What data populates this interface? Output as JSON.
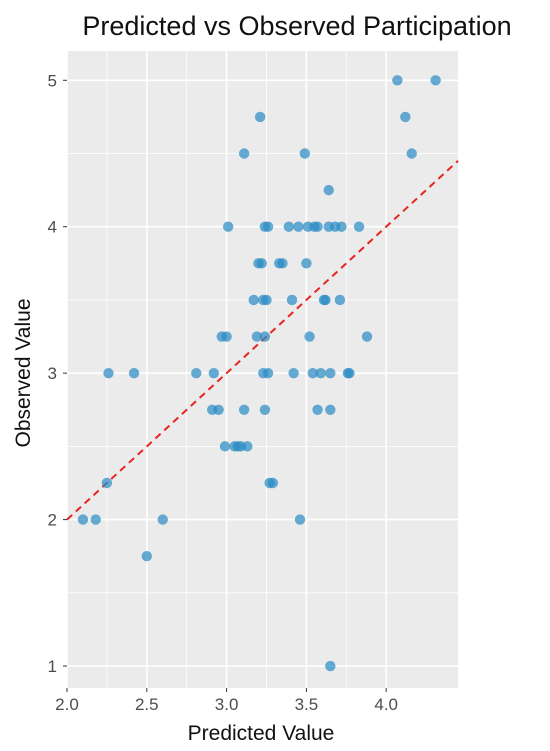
{
  "chart_data": {
    "type": "scatter",
    "title": "Predicted vs Observed Participation",
    "xlabel": "Predicted Value",
    "ylabel": "Observed Value",
    "xlim": [
      2.0,
      4.45
    ],
    "ylim": [
      0.85,
      5.2
    ],
    "xticks": [
      "2.0",
      "2.5",
      "3.0",
      "3.5",
      "4.0"
    ],
    "xtick_values": [
      2.0,
      2.5,
      3.0,
      3.5,
      4.0
    ],
    "yticks": [
      "1",
      "2",
      "3",
      "4",
      "5"
    ],
    "ytick_values": [
      1,
      2,
      3,
      4,
      5
    ],
    "grid": true,
    "background": "#ebebeb",
    "point_color": "#2b8cc4",
    "reference_line": {
      "type": "identity",
      "style": "dashed",
      "color": "#e8241e",
      "slope": 1,
      "intercept": 0
    },
    "points": [
      {
        "x": 2.1,
        "y": 2.0
      },
      {
        "x": 2.18,
        "y": 2.0
      },
      {
        "x": 2.25,
        "y": 2.25
      },
      {
        "x": 2.26,
        "y": 3.0
      },
      {
        "x": 2.42,
        "y": 3.0
      },
      {
        "x": 2.5,
        "y": 1.75
      },
      {
        "x": 2.6,
        "y": 2.0
      },
      {
        "x": 2.81,
        "y": 3.0
      },
      {
        "x": 2.91,
        "y": 2.75
      },
      {
        "x": 2.92,
        "y": 3.0
      },
      {
        "x": 2.95,
        "y": 2.75
      },
      {
        "x": 2.97,
        "y": 3.25
      },
      {
        "x": 2.99,
        "y": 2.5
      },
      {
        "x": 3.0,
        "y": 3.25
      },
      {
        "x": 3.01,
        "y": 4.0
      },
      {
        "x": 3.05,
        "y": 2.5
      },
      {
        "x": 3.07,
        "y": 2.5
      },
      {
        "x": 3.09,
        "y": 2.5
      },
      {
        "x": 3.11,
        "y": 4.5
      },
      {
        "x": 3.11,
        "y": 2.75
      },
      {
        "x": 3.13,
        "y": 2.5
      },
      {
        "x": 3.17,
        "y": 3.5
      },
      {
        "x": 3.19,
        "y": 3.25
      },
      {
        "x": 3.2,
        "y": 3.75
      },
      {
        "x": 3.21,
        "y": 4.75
      },
      {
        "x": 3.22,
        "y": 3.75
      },
      {
        "x": 3.23,
        "y": 3.0
      },
      {
        "x": 3.23,
        "y": 3.5
      },
      {
        "x": 3.24,
        "y": 3.25
      },
      {
        "x": 3.24,
        "y": 4.0
      },
      {
        "x": 3.24,
        "y": 2.75
      },
      {
        "x": 3.25,
        "y": 3.5
      },
      {
        "x": 3.26,
        "y": 4.0
      },
      {
        "x": 3.26,
        "y": 3.0
      },
      {
        "x": 3.27,
        "y": 2.25
      },
      {
        "x": 3.29,
        "y": 2.25
      },
      {
        "x": 3.33,
        "y": 3.75
      },
      {
        "x": 3.35,
        "y": 3.75
      },
      {
        "x": 3.39,
        "y": 4.0
      },
      {
        "x": 3.41,
        "y": 3.5
      },
      {
        "x": 3.42,
        "y": 3.0
      },
      {
        "x": 3.45,
        "y": 4.0
      },
      {
        "x": 3.46,
        "y": 2.0
      },
      {
        "x": 3.49,
        "y": 4.5
      },
      {
        "x": 3.5,
        "y": 3.75
      },
      {
        "x": 3.51,
        "y": 4.0
      },
      {
        "x": 3.52,
        "y": 3.25
      },
      {
        "x": 3.54,
        "y": 3.0
      },
      {
        "x": 3.55,
        "y": 4.0
      },
      {
        "x": 3.57,
        "y": 4.0
      },
      {
        "x": 3.57,
        "y": 2.75
      },
      {
        "x": 3.59,
        "y": 3.0
      },
      {
        "x": 3.61,
        "y": 3.5
      },
      {
        "x": 3.62,
        "y": 3.5
      },
      {
        "x": 3.64,
        "y": 4.25
      },
      {
        "x": 3.64,
        "y": 4.0
      },
      {
        "x": 3.65,
        "y": 3.0
      },
      {
        "x": 3.65,
        "y": 2.75
      },
      {
        "x": 3.65,
        "y": 1.0
      },
      {
        "x": 3.68,
        "y": 4.0
      },
      {
        "x": 3.71,
        "y": 3.5
      },
      {
        "x": 3.72,
        "y": 4.0
      },
      {
        "x": 3.76,
        "y": 3.0
      },
      {
        "x": 3.77,
        "y": 3.0
      },
      {
        "x": 3.83,
        "y": 4.0
      },
      {
        "x": 3.88,
        "y": 3.25
      },
      {
        "x": 4.07,
        "y": 5.0
      },
      {
        "x": 4.12,
        "y": 4.75
      },
      {
        "x": 4.16,
        "y": 4.5
      },
      {
        "x": 4.31,
        "y": 5.0
      }
    ]
  }
}
